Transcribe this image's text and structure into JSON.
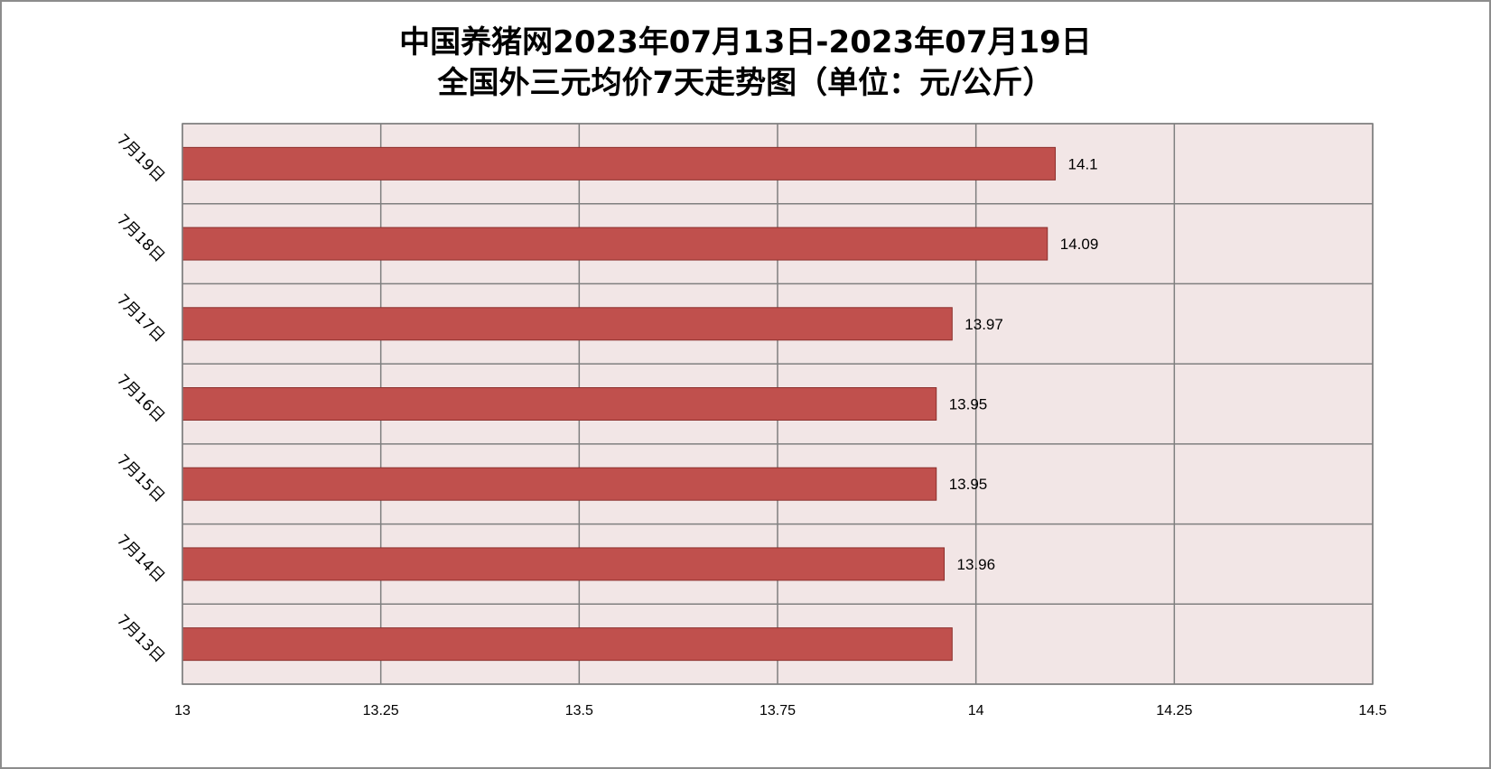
{
  "chart_data": {
    "type": "bar",
    "orientation": "horizontal",
    "title_line1": "中国养猪网2023年07月13日-2023年07月19日",
    "title_line2": "全国外三元均价7天走势图（单位：元/公斤）",
    "categories": [
      "7月19日",
      "7月18日",
      "7月17日",
      "7月16日",
      "7月15日",
      "7月14日",
      "7月13日"
    ],
    "values": [
      14.1,
      14.09,
      13.97,
      13.95,
      13.95,
      13.96,
      13.97
    ],
    "data_labels": [
      "14.1",
      "14.09",
      "13.97",
      "13.95",
      "13.95",
      "13.96",
      ""
    ],
    "x_ticks": [
      "13",
      "13.25",
      "13.5",
      "13.75",
      "14",
      "14.25",
      "14.5"
    ],
    "xlim": [
      13,
      14.5
    ],
    "xlabel": "",
    "ylabel": "",
    "grid": true,
    "legend": "none",
    "colors": {
      "bar_fill": "#c0504d",
      "bar_stroke": "#8c2f2c",
      "plot_bg": "#f2e6e6",
      "grid": "#7f7f7f"
    }
  }
}
